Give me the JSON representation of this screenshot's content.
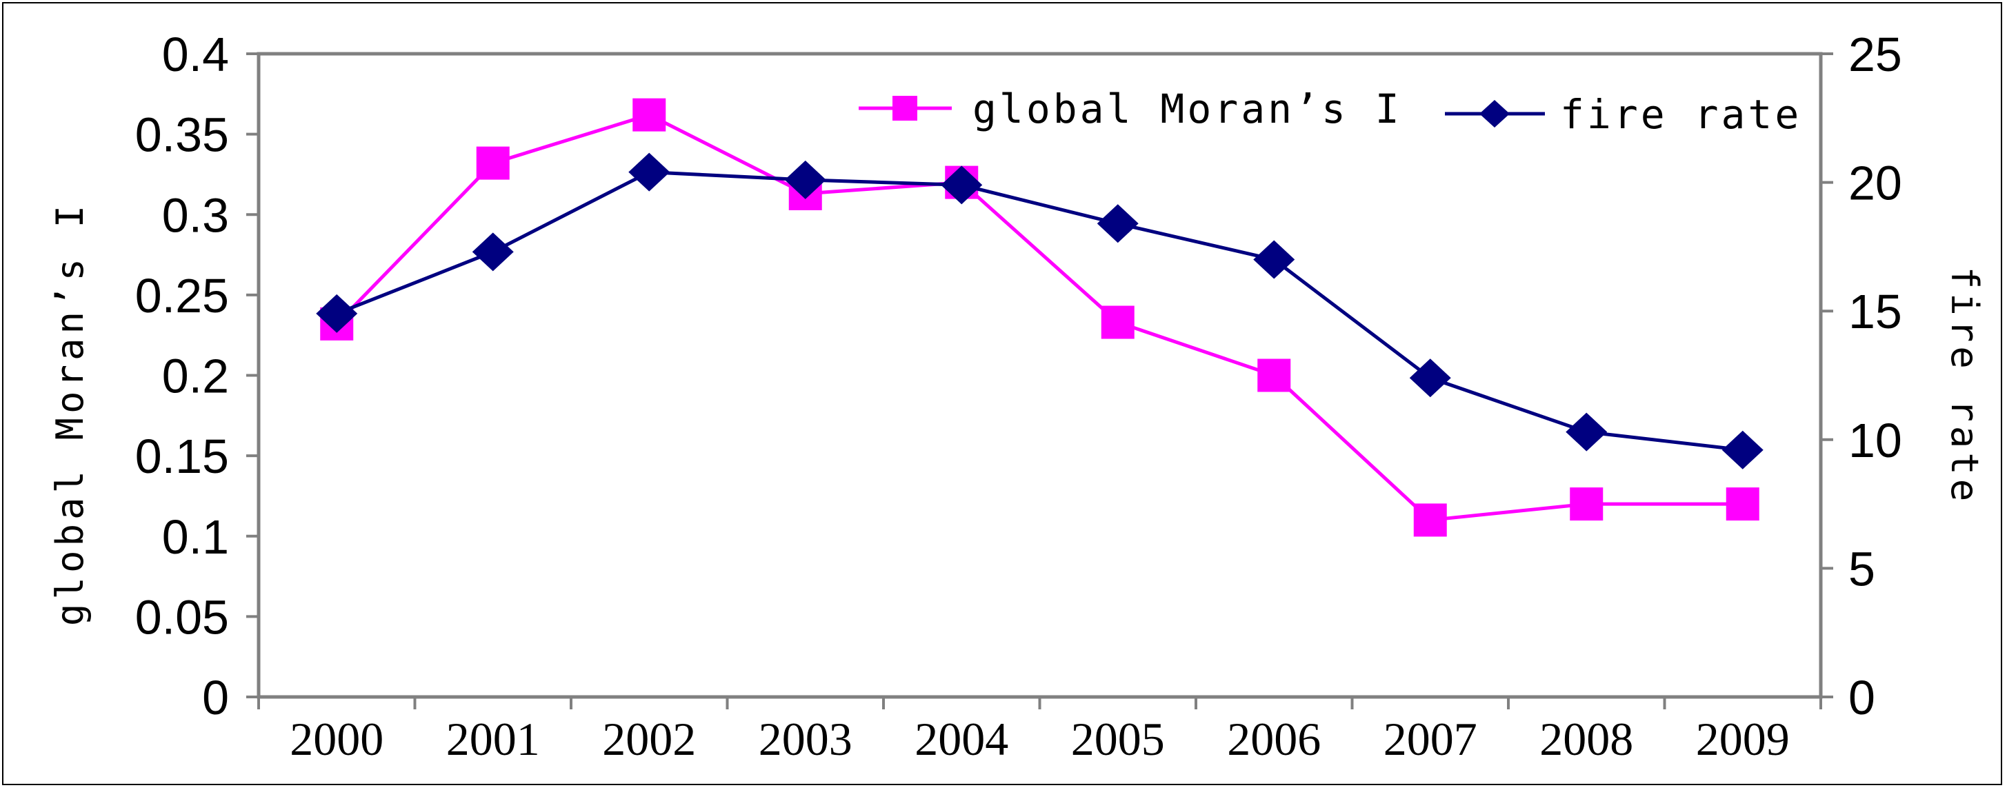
{
  "chart_data": {
    "type": "line",
    "categories": [
      "2000",
      "2001",
      "2002",
      "2003",
      "2004",
      "2005",
      "2006",
      "2007",
      "2008",
      "2009"
    ],
    "series": [
      {
        "name": "global Moran’s I",
        "axis": "left",
        "color": "#FF00FF",
        "marker": "square",
        "values": [
          0.232,
          0.332,
          0.362,
          0.313,
          0.32,
          0.233,
          0.2,
          0.11,
          0.12,
          0.12
        ]
      },
      {
        "name": "fire rate",
        "axis": "right",
        "color": "#000080",
        "marker": "diamond",
        "values": [
          14.9,
          17.3,
          20.4,
          20.1,
          19.9,
          18.4,
          17.0,
          12.4,
          10.3,
          9.6
        ]
      }
    ],
    "y_left": {
      "label": "global Moran’s I",
      "ylim": [
        0,
        0.4
      ],
      "ticks": [
        "0",
        "0.05",
        "0.1",
        "0.15",
        "0.2",
        "0.25",
        "0.3",
        "0.35",
        "0.4"
      ]
    },
    "y_right": {
      "label": "fire rate",
      "ylim": [
        0,
        25
      ],
      "ticks": [
        "0",
        "5",
        "10",
        "15",
        "20",
        "25"
      ]
    },
    "grid": false,
    "legend": "top-right"
  }
}
